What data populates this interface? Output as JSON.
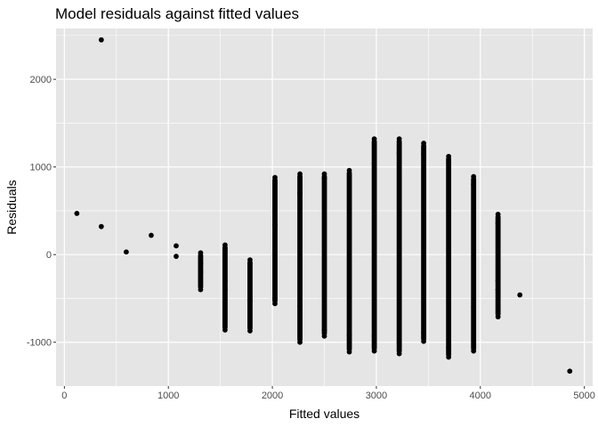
{
  "chart_data": {
    "type": "scatter",
    "title": "Model residuals against fitted values",
    "xlabel": "Fitted values",
    "ylabel": "Residuals",
    "xlim": [
      -80,
      5080
    ],
    "ylim": [
      -1500,
      2580
    ],
    "x_ticks": [
      0,
      1000,
      2000,
      3000,
      4000,
      5000
    ],
    "x_tick_labels": [
      "0",
      "1000",
      "2000",
      "3000",
      "4000",
      "5000"
    ],
    "y_ticks": [
      -1000,
      0,
      1000,
      2000
    ],
    "y_tick_labels": [
      "-1000",
      "0",
      "1000",
      "2000"
    ],
    "grid": true,
    "legend": "none",
    "point_color": "#000000",
    "panel_color": "#e5e5e5",
    "grid_color": "#ffffff",
    "points": [
      [
        120,
        470
      ],
      [
        355,
        2450
      ],
      [
        355,
        320
      ],
      [
        595,
        30
      ],
      [
        835,
        220
      ],
      [
        1075,
        100
      ],
      [
        1075,
        -20
      ],
      [
        4380,
        -460
      ],
      [
        4860,
        -1330
      ]
    ],
    "columns": [
      {
        "x": 1310,
        "min": -400,
        "max": 20,
        "extremes": [
          -400,
          -200,
          -100,
          20
        ]
      },
      {
        "x": 1545,
        "min": -860,
        "max": 110,
        "extremes": [
          -860,
          -400,
          -300,
          110
        ]
      },
      {
        "x": 1785,
        "min": -870,
        "max": -60,
        "extremes": [
          -870,
          -530,
          -60
        ]
      },
      {
        "x": 2025,
        "min": -560,
        "max": 880,
        "extremes": [
          -560,
          -500,
          340,
          880
        ]
      },
      {
        "x": 2265,
        "min": -1000,
        "max": 920,
        "extremes": [
          -1000,
          -590,
          700,
          920
        ]
      },
      {
        "x": 2500,
        "min": -930,
        "max": 920,
        "extremes": [
          -930,
          -860,
          870,
          920
        ]
      },
      {
        "x": 2740,
        "min": -1110,
        "max": 960,
        "extremes": [
          -1110,
          -920,
          960
        ]
      },
      {
        "x": 2980,
        "min": -1100,
        "max": 1320,
        "extremes": [
          -1100,
          -930,
          1040,
          1320
        ]
      },
      {
        "x": 3220,
        "min": -1130,
        "max": 1320,
        "extremes": [
          -1130,
          -1000,
          1160,
          1320
        ]
      },
      {
        "x": 3455,
        "min": -990,
        "max": 1270,
        "extremes": [
          -990,
          -890,
          1150,
          1270
        ]
      },
      {
        "x": 3695,
        "min": -1170,
        "max": 1120,
        "extremes": [
          -1170,
          -1060,
          1120
        ]
      },
      {
        "x": 3935,
        "min": -1100,
        "max": 890,
        "extremes": [
          -1100,
          -600,
          800,
          890
        ]
      },
      {
        "x": 4170,
        "min": -710,
        "max": 460,
        "extremes": [
          -710,
          -400,
          -300,
          360,
          460
        ]
      }
    ]
  }
}
